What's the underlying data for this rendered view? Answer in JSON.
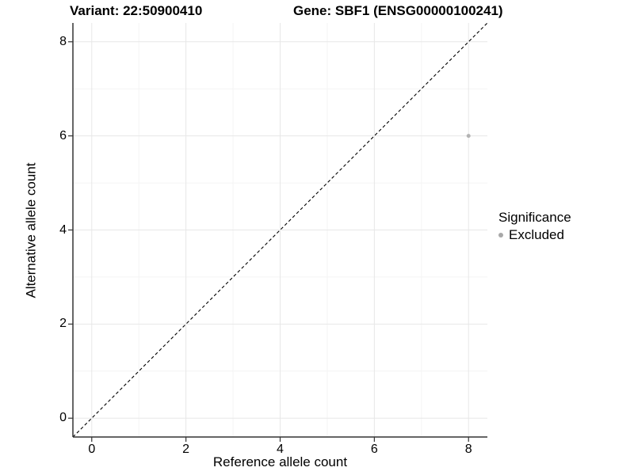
{
  "title": {
    "variant": "Variant: 22:50900410",
    "gene": "Gene: SBF1 (ENSG00000100241)"
  },
  "axes": {
    "x_label": "Reference allele count",
    "y_label": "Alternative allele count"
  },
  "legend": {
    "title": "Significance",
    "items": [
      {
        "label": "Excluded",
        "color": "#a8a8a8"
      }
    ]
  },
  "chart_data": {
    "type": "scatter",
    "title": "Variant: 22:50900410   Gene: SBF1 (ENSG00000100241)",
    "xlabel": "Reference allele count",
    "ylabel": "Alternative allele count",
    "xlim": [
      -0.4,
      8.4
    ],
    "ylim": [
      -0.4,
      8.4
    ],
    "xticks": [
      0,
      2,
      4,
      6,
      8
    ],
    "yticks": [
      0,
      2,
      4,
      6,
      8
    ],
    "xticks_minor": [
      1,
      3,
      5,
      7
    ],
    "yticks_minor": [
      1,
      3,
      5,
      7
    ],
    "grid": true,
    "legend_position": "right",
    "series": [
      {
        "name": "Excluded",
        "color": "#b3b3b3",
        "point_radius": 2.5,
        "points": [
          {
            "x": 8,
            "y": 6
          }
        ]
      }
    ],
    "reference_line": {
      "type": "identity",
      "style": "dashed",
      "color": "#000000",
      "from": [
        -0.4,
        -0.4
      ],
      "to": [
        8.4,
        8.4
      ]
    },
    "colors": {
      "grid_major": "#e7e7e7",
      "grid_minor": "#f4f4f4",
      "axis_line": "#333333",
      "tick_mark": "#333333"
    }
  }
}
